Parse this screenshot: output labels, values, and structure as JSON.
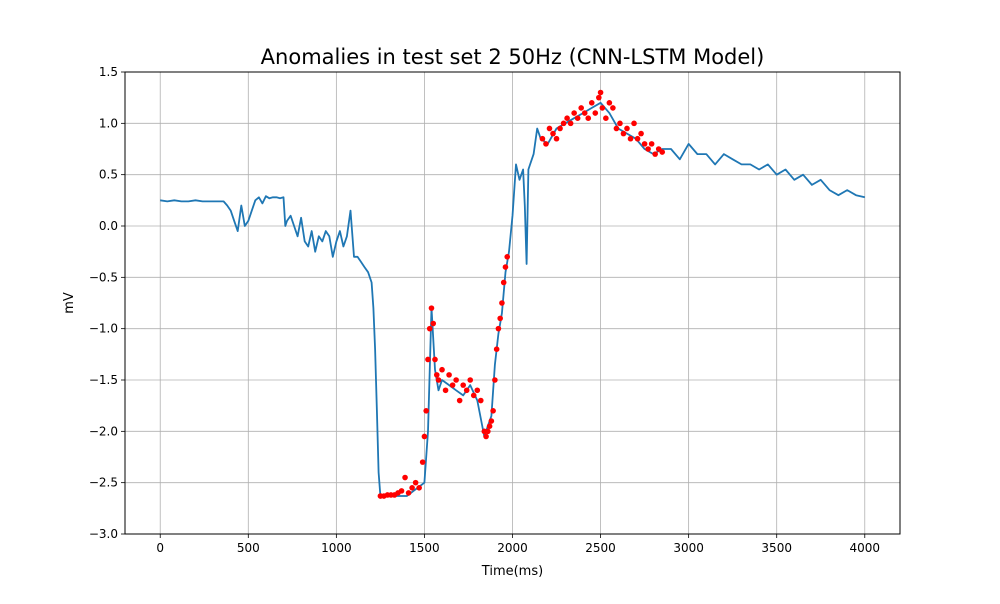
{
  "colors": {
    "line": "#1f77b4",
    "anomaly": "#ff0000",
    "grid": "#b0b0b0",
    "axis": "#000000",
    "background": "#ffffff"
  },
  "chart_data": {
    "type": "line",
    "title": "Anomalies in test set 2 50Hz (CNN-LSTM Model)",
    "xlabel": "Time(ms)",
    "ylabel": "mV",
    "xlim": [
      -200,
      4200
    ],
    "ylim": [
      -3.0,
      1.5
    ],
    "xticks": [
      0,
      500,
      1000,
      1500,
      2000,
      2500,
      3000,
      3500,
      4000
    ],
    "xtick_labels": [
      "0",
      "500",
      "1000",
      "1500",
      "2000",
      "2500",
      "3000",
      "3500",
      "4000"
    ],
    "yticks": [
      -3.0,
      -2.5,
      -2.0,
      -1.5,
      -1.0,
      -0.5,
      0.0,
      0.5,
      1.0,
      1.5
    ],
    "ytick_labels": [
      "−3.0",
      "−2.5",
      "−2.0",
      "−1.5",
      "−1.0",
      "−0.5",
      "0.0",
      "0.5",
      "1.0",
      "1.5"
    ],
    "grid": true,
    "series": [
      {
        "kind": "line",
        "x": [
          0,
          40,
          80,
          120,
          160,
          200,
          240,
          280,
          320,
          340,
          360,
          380,
          400,
          420,
          440,
          460,
          480,
          500,
          520,
          540,
          560,
          580,
          600,
          620,
          640,
          660,
          680,
          700,
          710,
          720,
          740,
          760,
          780,
          800,
          820,
          840,
          860,
          880,
          900,
          920,
          940,
          960,
          980,
          1000,
          1020,
          1040,
          1060,
          1080,
          1100,
          1120,
          1140,
          1160,
          1180,
          1200,
          1210,
          1220,
          1230,
          1240,
          1250,
          1400,
          1500,
          1520,
          1540,
          1560,
          1580,
          1600,
          1640,
          1680,
          1720,
          1760,
          1800,
          1840,
          1860,
          1880,
          1900,
          1920,
          1940,
          1960,
          1980,
          2000,
          2020,
          2040,
          2060,
          2070,
          2080,
          2090,
          2100,
          2120,
          2140,
          2160,
          2200,
          2250,
          2300,
          2350,
          2400,
          2450,
          2500,
          2550,
          2600,
          2650,
          2700,
          2750,
          2800,
          2850,
          2900,
          2950,
          3000,
          3050,
          3100,
          3150,
          3200,
          3250,
          3300,
          3350,
          3400,
          3450,
          3500,
          3550,
          3600,
          3650,
          3700,
          3750,
          3800,
          3850,
          3900,
          3950,
          4000
        ],
        "y": [
          0.25,
          0.24,
          0.25,
          0.24,
          0.24,
          0.25,
          0.24,
          0.24,
          0.24,
          0.24,
          0.24,
          0.2,
          0.15,
          0.05,
          -0.05,
          0.2,
          0.0,
          0.05,
          0.15,
          0.25,
          0.28,
          0.22,
          0.29,
          0.27,
          0.28,
          0.28,
          0.27,
          0.28,
          0.0,
          0.05,
          0.1,
          0.0,
          -0.1,
          0.08,
          -0.15,
          -0.2,
          -0.05,
          -0.25,
          -0.1,
          -0.15,
          -0.05,
          -0.1,
          -0.3,
          -0.15,
          -0.05,
          -0.2,
          -0.1,
          0.15,
          -0.3,
          -0.3,
          -0.35,
          -0.4,
          -0.45,
          -0.55,
          -0.8,
          -1.2,
          -1.8,
          -2.4,
          -2.63,
          -2.63,
          -2.5,
          -2.0,
          -0.8,
          -1.4,
          -1.6,
          -1.5,
          -1.55,
          -1.6,
          -1.65,
          -1.55,
          -1.7,
          -2.05,
          -1.95,
          -1.85,
          -1.35,
          -1.05,
          -0.85,
          -0.45,
          -0.25,
          0.1,
          0.6,
          0.45,
          0.55,
          0.2,
          -0.37,
          0.55,
          0.6,
          0.7,
          0.95,
          0.85,
          0.8,
          0.95,
          1.0,
          1.05,
          1.1,
          1.15,
          1.2,
          1.1,
          0.95,
          0.9,
          0.85,
          0.75,
          0.7,
          0.75,
          0.75,
          0.65,
          0.8,
          0.7,
          0.7,
          0.6,
          0.7,
          0.65,
          0.6,
          0.6,
          0.55,
          0.6,
          0.5,
          0.55,
          0.45,
          0.5,
          0.4,
          0.45,
          0.35,
          0.3,
          0.35,
          0.3,
          0.28
        ]
      },
      {
        "kind": "scatter",
        "name": "",
        "x": [
          1250,
          1270,
          1290,
          1310,
          1330,
          1350,
          1370,
          1390,
          1410,
          1430,
          1450,
          1470,
          1490,
          1500,
          1510,
          1520,
          1530,
          1540,
          1550,
          1560,
          1570,
          1580,
          1600,
          1620,
          1640,
          1660,
          1680,
          1700,
          1720,
          1740,
          1760,
          1780,
          1800,
          1820,
          1840,
          1850,
          1860,
          1870,
          1880,
          1890,
          1900,
          1910,
          1920,
          1930,
          1940,
          1950,
          1960,
          1970,
          2170,
          2190,
          2210,
          2230,
          2250,
          2270,
          2290,
          2310,
          2330,
          2350,
          2370,
          2390,
          2410,
          2430,
          2450,
          2470,
          2490,
          2500,
          2510,
          2530,
          2550,
          2570,
          2590,
          2610,
          2630,
          2650,
          2670,
          2690,
          2710,
          2730,
          2750,
          2770,
          2790,
          2810,
          2830,
          2850
        ],
        "y": [
          -2.63,
          -2.63,
          -2.62,
          -2.62,
          -2.62,
          -2.6,
          -2.58,
          -2.45,
          -2.6,
          -2.55,
          -2.5,
          -2.55,
          -2.3,
          -2.05,
          -1.8,
          -1.3,
          -1.0,
          -0.8,
          -0.95,
          -1.3,
          -1.45,
          -1.5,
          -1.4,
          -1.6,
          -1.45,
          -1.55,
          -1.5,
          -1.7,
          -1.55,
          -1.6,
          -1.5,
          -1.65,
          -1.6,
          -1.7,
          -2.0,
          -2.05,
          -2.0,
          -1.95,
          -1.9,
          -1.8,
          -1.5,
          -1.2,
          -1.0,
          -0.9,
          -0.75,
          -0.55,
          -0.4,
          -0.3,
          0.85,
          0.8,
          0.95,
          0.9,
          0.85,
          0.95,
          1.0,
          1.05,
          1.0,
          1.1,
          1.05,
          1.15,
          1.1,
          1.05,
          1.2,
          1.1,
          1.25,
          1.3,
          1.15,
          1.05,
          1.2,
          1.15,
          0.95,
          1.0,
          0.9,
          0.95,
          0.85,
          1.0,
          0.85,
          0.9,
          0.8,
          0.75,
          0.8,
          0.7,
          0.75,
          0.72
        ]
      }
    ]
  }
}
